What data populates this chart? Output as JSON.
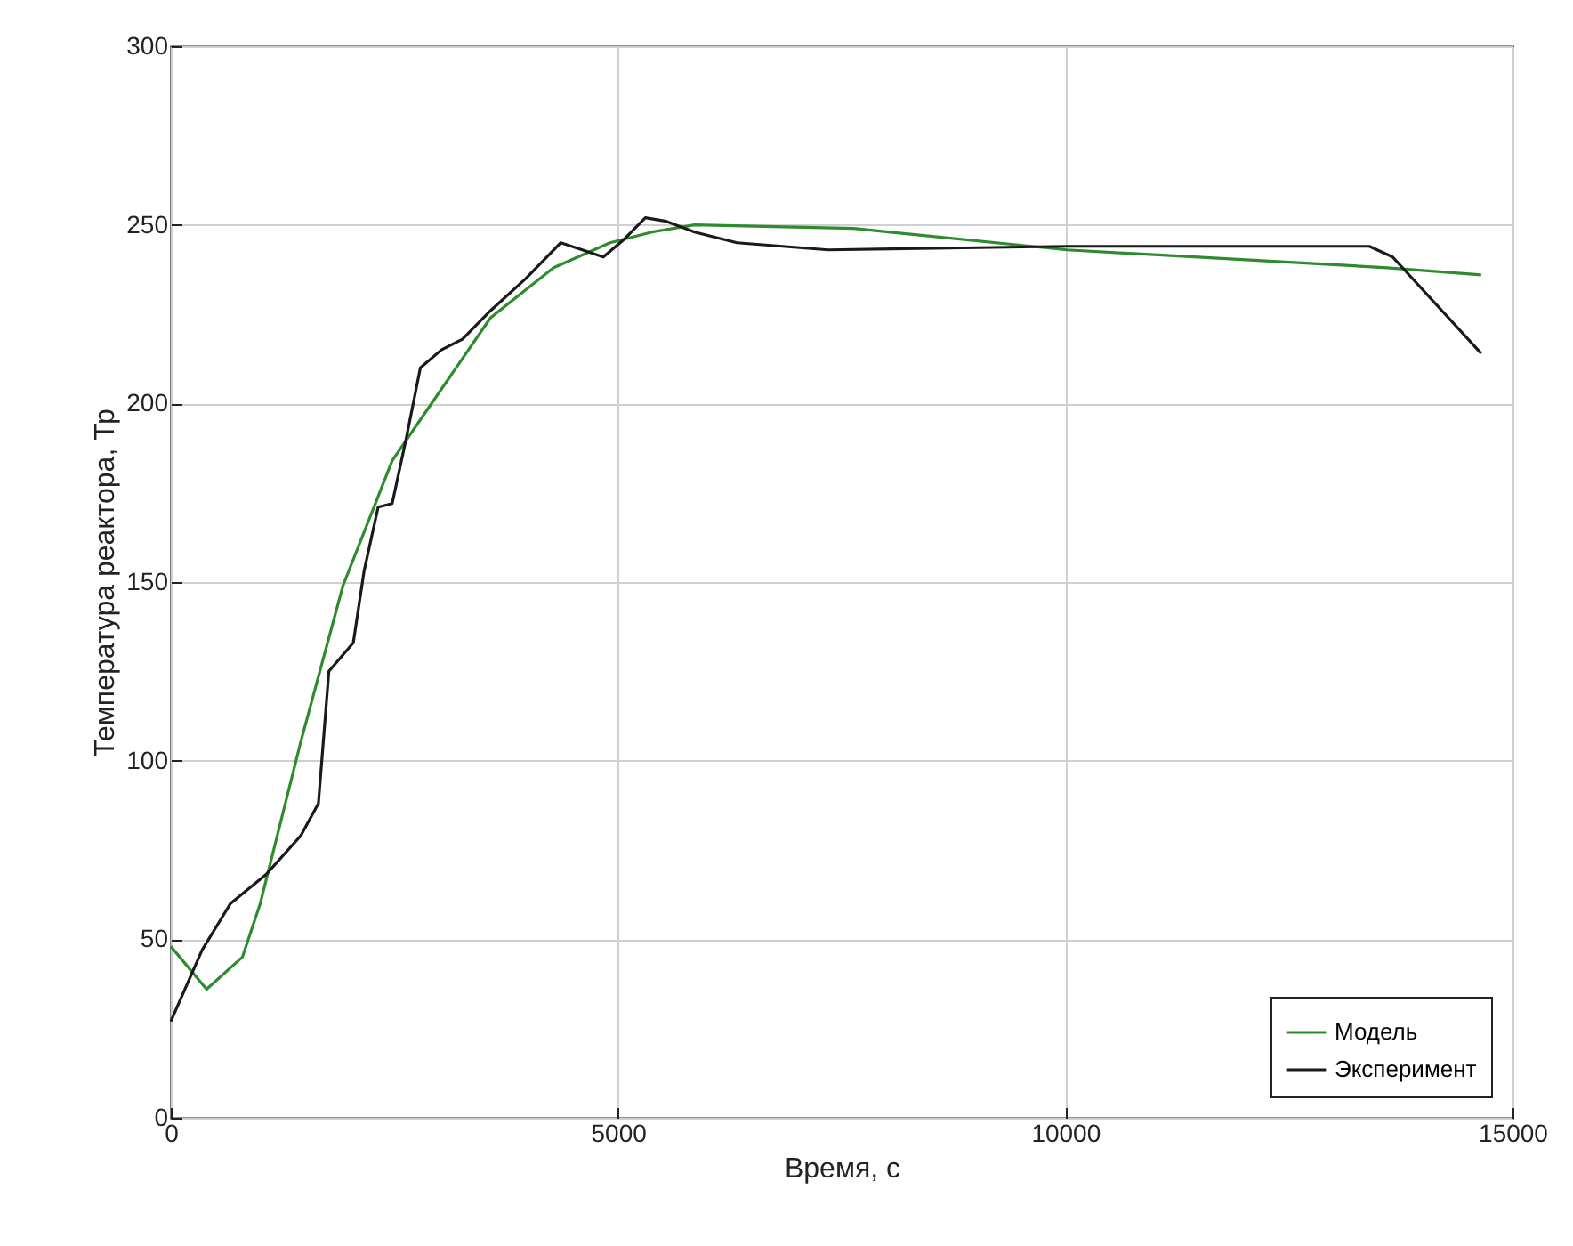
{
  "chart_data": {
    "type": "line",
    "xlabel": "Время, с",
    "ylabel": "Температура реактора, Тр",
    "xlim": [
      0,
      15000
    ],
    "ylim": [
      0,
      300
    ],
    "xticks": [
      0,
      5000,
      10000,
      15000
    ],
    "yticks": [
      0,
      50,
      100,
      150,
      200,
      250,
      300
    ],
    "grid": true,
    "legend": "bottom right",
    "line_style": "solid",
    "series": [
      {
        "name": "Модель",
        "color": "#2e8b2e",
        "x": [
          0,
          400,
          800,
          1000,
          1450,
          1925,
          2475,
          3025,
          3575,
          4280,
          4910,
          5380,
          5855,
          7634,
          10020,
          13600,
          14650
        ],
        "values": [
          48,
          36,
          45,
          60,
          105,
          149,
          184,
          204,
          224,
          238,
          245,
          248,
          250,
          249,
          243,
          238,
          236
        ]
      },
      {
        "name": "Эксперимент",
        "color": "#1a1a1a",
        "x": [
          0,
          350,
          667,
          1060,
          1453,
          1650,
          1767,
          2040,
          2160,
          2318,
          2475,
          2630,
          2790,
          3025,
          3260,
          3575,
          3970,
          4360,
          4600,
          4835,
          5070,
          5305,
          5540,
          5855,
          6330,
          7350,
          10020,
          13400,
          13660,
          14650
        ],
        "values": [
          27,
          47,
          60,
          68,
          79,
          88,
          125,
          133,
          153,
          171,
          172,
          190,
          210,
          215,
          218,
          226,
          235,
          245,
          243,
          241,
          246,
          252,
          251,
          248,
          245,
          243,
          244,
          244,
          241,
          214
        ]
      }
    ]
  }
}
